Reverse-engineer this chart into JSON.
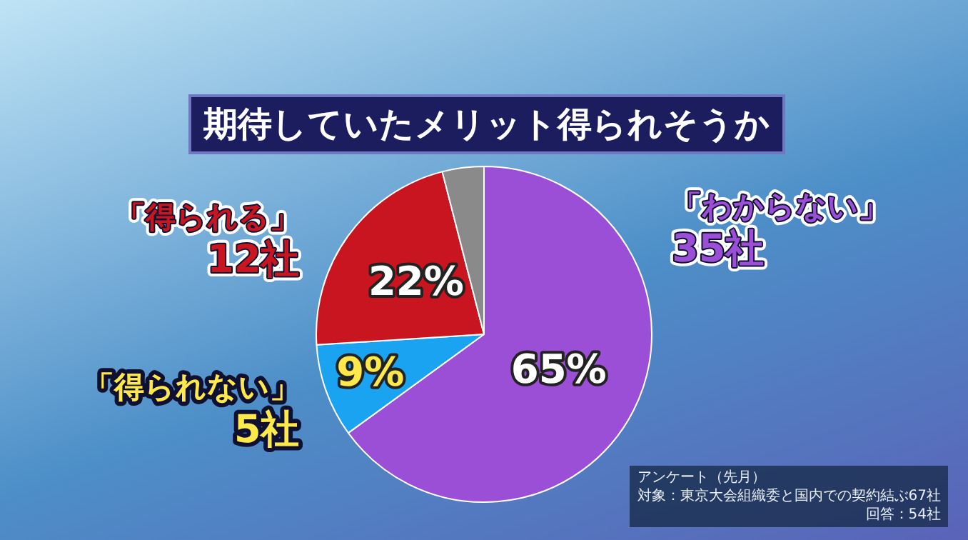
{
  "chart_data": {
    "type": "pie",
    "title": "期待していたメリット得られそうか",
    "categories": [
      "「わからない」\n35社",
      "「得られない」\n5社",
      "「得られる」\n12社",
      null
    ],
    "values": [
      65,
      9,
      22,
      4
    ],
    "colors": [
      "#9b4fd6",
      "#1aa3f0",
      "#c8151f",
      "#8a8a8a"
    ],
    "value_labels": [
      "65%",
      "9%",
      "22%",
      null
    ],
    "legend": false,
    "annotations": [
      "アンケート（先月）",
      "対象：東京大会組織委と国内での契約結ぶ67社",
      "回答：54社"
    ]
  }
}
